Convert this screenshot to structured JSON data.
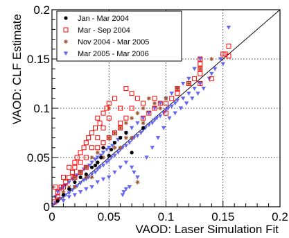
{
  "chart_data": {
    "type": "scatter",
    "xlabel": "VAOD: Laser Simulation Fit",
    "ylabel": "VAOD: CLF Estimate",
    "xlim": [
      0,
      0.2
    ],
    "ylim": [
      0,
      0.2
    ],
    "x_ticks": [
      0,
      0.05,
      0.1,
      0.15,
      0.2
    ],
    "y_ticks": [
      0,
      0.05,
      0.1,
      0.15,
      0.2
    ],
    "x_tick_labels": [
      "0",
      "0.05",
      "0.1",
      "0.15",
      "0.2"
    ],
    "y_tick_labels": [
      "0",
      "0.05",
      "0.1",
      "0.15",
      "0.2"
    ],
    "grid": true,
    "legend_position": "top-left",
    "reference_line": {
      "from": [
        0,
        0
      ],
      "to": [
        0.2,
        0.2
      ],
      "color": "#000000"
    },
    "series": [
      {
        "name": "Jan - Mar 2004",
        "marker": "filled-circle",
        "color": "#000000",
        "points": [
          [
            0.03,
            0.033
          ],
          [
            0.035,
            0.04
          ],
          [
            0.04,
            0.045
          ],
          [
            0.043,
            0.05
          ],
          [
            0.05,
            0.052
          ],
          [
            0.055,
            0.065
          ],
          [
            0.06,
            0.07
          ],
          [
            0.07,
            0.055
          ],
          [
            0.08,
            0.08
          ],
          [
            0.02,
            0.025
          ],
          [
            0.025,
            0.03
          ],
          [
            0.015,
            0.018
          ],
          [
            0.01,
            0.012
          ],
          [
            0.005,
            0.006
          ],
          [
            0.045,
            0.06
          ],
          [
            0.065,
            0.075
          ],
          [
            0.038,
            0.042
          ],
          [
            0.052,
            0.058
          ]
        ]
      },
      {
        "name": "Mar - Sep 2004",
        "marker": "open-square",
        "color": "#ff0000",
        "points": [
          [
            0.002,
            0.005
          ],
          [
            0.005,
            0.01
          ],
          [
            0.008,
            0.02
          ],
          [
            0.01,
            0.03
          ],
          [
            0.012,
            0.025
          ],
          [
            0.015,
            0.04
          ],
          [
            0.018,
            0.035
          ],
          [
            0.02,
            0.045
          ],
          [
            0.022,
            0.05
          ],
          [
            0.025,
            0.055
          ],
          [
            0.028,
            0.06
          ],
          [
            0.03,
            0.065
          ],
          [
            0.032,
            0.07
          ],
          [
            0.035,
            0.075
          ],
          [
            0.038,
            0.08
          ],
          [
            0.04,
            0.09
          ],
          [
            0.042,
            0.085
          ],
          [
            0.045,
            0.095
          ],
          [
            0.048,
            0.1
          ],
          [
            0.05,
            0.105
          ],
          [
            0.055,
            0.11
          ],
          [
            0.06,
            0.1
          ],
          [
            0.065,
            0.12
          ],
          [
            0.07,
            0.115
          ],
          [
            0.075,
            0.11
          ],
          [
            0.08,
            0.09
          ],
          [
            0.085,
            0.095
          ],
          [
            0.09,
            0.1
          ],
          [
            0.095,
            0.105
          ],
          [
            0.1,
            0.095
          ],
          [
            0.105,
            0.11
          ],
          [
            0.11,
            0.12
          ],
          [
            0.12,
            0.125
          ],
          [
            0.125,
            0.13
          ],
          [
            0.13,
            0.135
          ],
          [
            0.13,
            0.14
          ],
          [
            0.13,
            0.145
          ],
          [
            0.13,
            0.15
          ],
          [
            0.13,
            0.125
          ],
          [
            0.14,
            0.13
          ],
          [
            0.15,
            0.155
          ],
          [
            0.155,
            0.163
          ],
          [
            0.155,
            0.153
          ],
          [
            0.152,
            0.155
          ],
          [
            0.02,
            0.03
          ],
          [
            0.025,
            0.035
          ],
          [
            0.015,
            0.03
          ],
          [
            0.01,
            0.02
          ],
          [
            0.005,
            0.015
          ],
          [
            0.003,
            0.02
          ],
          [
            0.035,
            0.06
          ],
          [
            0.04,
            0.07
          ],
          [
            0.045,
            0.08
          ],
          [
            0.05,
            0.09
          ],
          [
            0.06,
            0.085
          ],
          [
            0.065,
            0.09
          ],
          [
            0.07,
            0.1
          ],
          [
            0.08,
            0.105
          ],
          [
            0.09,
            0.11
          ],
          [
            0.1,
            0.105
          ],
          [
            0.11,
            0.115
          ],
          [
            0.025,
            0.045
          ],
          [
            0.03,
            0.05
          ],
          [
            0.04,
            0.06
          ],
          [
            0.05,
            0.07
          ],
          [
            0.055,
            0.075
          ],
          [
            0.06,
            0.08
          ],
          [
            0.03,
            0.04
          ],
          [
            0.02,
            0.04
          ],
          [
            0.045,
            0.065
          ]
        ]
      },
      {
        "name": "Nov 2004 - Mar 2005",
        "marker": "asterisk",
        "color": "#a0522d",
        "points": [
          [
            0.005,
            0.008
          ],
          [
            0.01,
            0.015
          ],
          [
            0.015,
            0.02
          ],
          [
            0.02,
            0.03
          ],
          [
            0.025,
            0.035
          ],
          [
            0.03,
            0.04
          ],
          [
            0.035,
            0.05
          ],
          [
            0.04,
            0.055
          ],
          [
            0.045,
            0.06
          ],
          [
            0.05,
            0.07
          ],
          [
            0.055,
            0.075
          ],
          [
            0.06,
            0.08
          ],
          [
            0.065,
            0.085
          ],
          [
            0.07,
            0.09
          ],
          [
            0.075,
            0.095
          ],
          [
            0.08,
            0.1
          ],
          [
            0.085,
            0.11
          ],
          [
            0.09,
            0.105
          ],
          [
            0.095,
            0.1
          ],
          [
            0.1,
            0.11
          ],
          [
            0.11,
            0.12
          ],
          [
            0.12,
            0.125
          ],
          [
            0.13,
            0.14
          ],
          [
            0.14,
            0.15
          ],
          [
            0.05,
            0.1
          ],
          [
            0.04,
            0.045
          ],
          [
            0.03,
            0.03
          ],
          [
            0.02,
            0.02
          ],
          [
            0.06,
            0.06
          ],
          [
            0.07,
            0.07
          ],
          [
            0.075,
            0.025
          ],
          [
            0.08,
            0.085
          ],
          [
            0.035,
            0.03
          ],
          [
            0.045,
            0.05
          ],
          [
            0.055,
            0.06
          ],
          [
            0.065,
            0.07
          ]
        ]
      },
      {
        "name": "Mar 2005 - Mar 2006",
        "marker": "filled-triangle-down",
        "color": "#6666ee",
        "points": [
          [
            0.001,
            0.002
          ],
          [
            0.003,
            0.004
          ],
          [
            0.005,
            0.005
          ],
          [
            0.007,
            0.008
          ],
          [
            0.01,
            0.01
          ],
          [
            0.012,
            0.012
          ],
          [
            0.015,
            0.014
          ],
          [
            0.018,
            0.017
          ],
          [
            0.02,
            0.02
          ],
          [
            0.022,
            0.021
          ],
          [
            0.025,
            0.024
          ],
          [
            0.028,
            0.027
          ],
          [
            0.03,
            0.028
          ],
          [
            0.032,
            0.03
          ],
          [
            0.035,
            0.033
          ],
          [
            0.038,
            0.035
          ],
          [
            0.04,
            0.038
          ],
          [
            0.042,
            0.04
          ],
          [
            0.045,
            0.042
          ],
          [
            0.048,
            0.045
          ],
          [
            0.05,
            0.047
          ],
          [
            0.052,
            0.05
          ],
          [
            0.055,
            0.052
          ],
          [
            0.058,
            0.055
          ],
          [
            0.06,
            0.058
          ],
          [
            0.062,
            0.06
          ],
          [
            0.065,
            0.062
          ],
          [
            0.068,
            0.065
          ],
          [
            0.07,
            0.068
          ],
          [
            0.072,
            0.07
          ],
          [
            0.075,
            0.072
          ],
          [
            0.078,
            0.075
          ],
          [
            0.08,
            0.078
          ],
          [
            0.082,
            0.08
          ],
          [
            0.085,
            0.083
          ],
          [
            0.088,
            0.085
          ],
          [
            0.09,
            0.088
          ],
          [
            0.092,
            0.09
          ],
          [
            0.095,
            0.092
          ],
          [
            0.098,
            0.095
          ],
          [
            0.1,
            0.098
          ],
          [
            0.102,
            0.1
          ],
          [
            0.105,
            0.102
          ],
          [
            0.108,
            0.105
          ],
          [
            0.11,
            0.108
          ],
          [
            0.115,
            0.11
          ],
          [
            0.12,
            0.115
          ],
          [
            0.125,
            0.12
          ],
          [
            0.13,
            0.125
          ],
          [
            0.14,
            0.135
          ],
          [
            0.15,
            0.145
          ],
          [
            0.155,
            0.182
          ],
          [
            0.07,
            0.04
          ],
          [
            0.072,
            0.035
          ],
          [
            0.075,
            0.03
          ],
          [
            0.065,
            0.045
          ],
          [
            0.06,
            0.04
          ],
          [
            0.055,
            0.035
          ],
          [
            0.05,
            0.03
          ],
          [
            0.045,
            0.028
          ],
          [
            0.04,
            0.025
          ],
          [
            0.035,
            0.02
          ],
          [
            0.03,
            0.018
          ],
          [
            0.025,
            0.015
          ],
          [
            0.02,
            0.012
          ],
          [
            0.015,
            0.01
          ],
          [
            0.01,
            0.006
          ],
          [
            0.063,
            0.015
          ],
          [
            0.065,
            0.018
          ],
          [
            0.068,
            0.02
          ],
          [
            0.062,
            0.012
          ],
          [
            0.01,
            0.02
          ],
          [
            0.015,
            0.025
          ],
          [
            0.02,
            0.03
          ],
          [
            0.025,
            0.035
          ],
          [
            0.03,
            0.04
          ],
          [
            0.035,
            0.045
          ],
          [
            0.04,
            0.05
          ],
          [
            0.045,
            0.055
          ],
          [
            0.05,
            0.06
          ],
          [
            0.055,
            0.065
          ],
          [
            0.06,
            0.07
          ],
          [
            0.065,
            0.075
          ],
          [
            0.07,
            0.08
          ],
          [
            0.075,
            0.085
          ],
          [
            0.08,
            0.09
          ],
          [
            0.085,
            0.095
          ],
          [
            0.09,
            0.1
          ],
          [
            0.095,
            0.105
          ],
          [
            0.1,
            0.11
          ],
          [
            0.003,
            0.01
          ],
          [
            0.005,
            0.015
          ],
          [
            0.008,
            0.018
          ],
          [
            0.012,
            0.022
          ],
          [
            0.018,
            0.028
          ],
          [
            0.022,
            0.032
          ],
          [
            0.028,
            0.038
          ],
          [
            0.033,
            0.042
          ],
          [
            0.038,
            0.048
          ],
          [
            0.043,
            0.052
          ],
          [
            0.048,
            0.058
          ],
          [
            0.053,
            0.062
          ],
          [
            0.058,
            0.068
          ],
          [
            0.083,
            0.05
          ],
          [
            0.088,
            0.06
          ],
          [
            0.093,
            0.07
          ],
          [
            0.098,
            0.08
          ],
          [
            0.103,
            0.09
          ],
          [
            0.108,
            0.095
          ],
          [
            0.113,
            0.1
          ],
          [
            0.118,
            0.105
          ],
          [
            0.123,
            0.11
          ],
          [
            0.128,
            0.115
          ],
          [
            0.133,
            0.12
          ],
          [
            0.138,
            0.13
          ],
          [
            0.143,
            0.14
          ],
          [
            0.148,
            0.15
          ],
          [
            0.125,
            0.14
          ],
          [
            0.13,
            0.15
          ],
          [
            0.12,
            0.13
          ],
          [
            0.115,
            0.125
          ],
          [
            0.11,
            0.12
          ],
          [
            0.105,
            0.115
          ]
        ]
      }
    ]
  }
}
